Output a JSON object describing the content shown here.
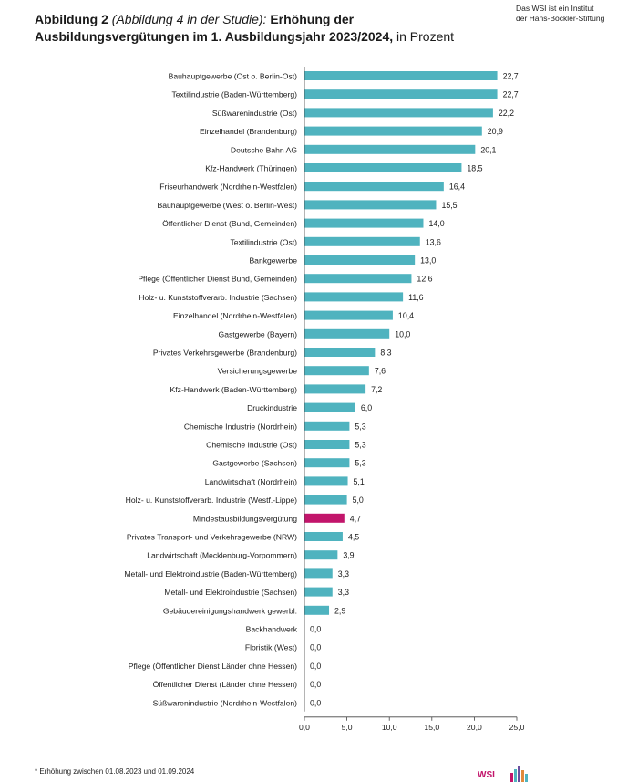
{
  "header": {
    "title_bold_1": "Abbildung 2",
    "title_italic": "(Abbildung 4 in der Studie):",
    "title_bold_2": "Erhöhung der Ausbildungsvergütungen im 1. Ausbildungsjahr 2023/2024,",
    "title_light": "in Prozent",
    "institute_line1": "Das WSI ist ein Institut",
    "institute_line2": "der Hans-Böckler-Stiftung"
  },
  "footnote": "* Erhöhung zwischen 01.08.2023 und 01.09.2024",
  "logo_text": "WSI",
  "colors": {
    "bar": "#4fb3bf",
    "highlight": "#c2156b",
    "axis": "#444444",
    "text": "#1a1a1a"
  },
  "chart_data": {
    "type": "bar",
    "orientation": "horizontal",
    "categories": [
      "Bauhauptgewerbe (Ost o. Berlin-Ost)",
      "Textilindustrie (Baden-Württemberg)",
      "Süßwarenindustrie (Ost)",
      "Einzelhandel (Brandenburg)",
      "Deutsche Bahn AG",
      "Kfz-Handwerk (Thüringen)",
      "Friseurhandwerk (Nordrhein-Westfalen)",
      "Bauhauptgewerbe (West o. Berlin-West)",
      "Öffentlicher Dienst (Bund, Gemeinden)",
      "Textilindustrie (Ost)",
      "Bankgewerbe",
      "Pflege (Öffentlicher Dienst Bund, Gemeinden)",
      "Holz- u. Kunststoffverarb. Industrie (Sachsen)",
      "Einzelhandel (Nordrhein-Westfalen)",
      "Gastgewerbe (Bayern)",
      "Privates Verkehrsgewerbe (Brandenburg)",
      "Versicherungsgewerbe",
      "Kfz-Handwerk (Baden-Württemberg)",
      "Druckindustrie",
      "Chemische Industrie (Nordrhein)",
      "Chemische Industrie (Ost)",
      "Gastgewerbe (Sachsen)",
      "Landwirtschaft (Nordrhein)",
      "Holz- u. Kunststoffverarb. Industrie (Westf.-Lippe)",
      "Mindestausbildungsvergütung",
      "Privates Transport- und Verkehrsgewerbe (NRW)",
      "Landwirtschaft (Mecklenburg-Vorpommern)",
      "Metall- und Elektroindustrie (Baden-Württemberg)",
      "Metall- und Elektroindustrie (Sachsen)",
      "Gebäudereinigungshandwerk gewerbl.",
      "Backhandwerk",
      "Floristik (West)",
      "Pflege (Öffentlicher Dienst Länder ohne Hessen)",
      "Öffentlicher Dienst (Länder ohne Hessen)",
      "Süßwarenindustrie (Nordrhein-Westfalen)"
    ],
    "values": [
      22.7,
      22.7,
      22.2,
      20.9,
      20.1,
      18.5,
      16.4,
      15.5,
      14.0,
      13.6,
      13.0,
      12.6,
      11.6,
      10.4,
      10.0,
      8.3,
      7.6,
      7.2,
      6.0,
      5.3,
      5.3,
      5.3,
      5.1,
      5.0,
      4.7,
      4.5,
      3.9,
      3.3,
      3.3,
      2.9,
      0.0,
      0.0,
      0.0,
      0.0,
      0.0
    ],
    "value_labels": [
      "22,7",
      "22,7",
      "22,2",
      "20,9",
      "20,1",
      "18,5",
      "16,4",
      "15,5",
      "14,0",
      "13,6",
      "13,0",
      "12,6",
      "11,6",
      "10,4",
      "10,0",
      "8,3",
      "7,6",
      "7,2",
      "6,0",
      "5,3",
      "5,3",
      "5,3",
      "5,1",
      "5,0",
      "4,7",
      "4,5",
      "3,9",
      "3,3",
      "3,3",
      "2,9",
      "0,0",
      "0,0",
      "0,0",
      "0,0",
      "0,0"
    ],
    "highlight_category": "Mindestausbildungsvergütung",
    "xlim": [
      0,
      25
    ],
    "xticks": [
      0,
      5,
      10,
      15,
      20,
      25
    ],
    "xtick_labels": [
      "0,0",
      "5,0",
      "10,0",
      "15,0",
      "20,0",
      "25,0"
    ],
    "grid": false,
    "legend": "none"
  }
}
